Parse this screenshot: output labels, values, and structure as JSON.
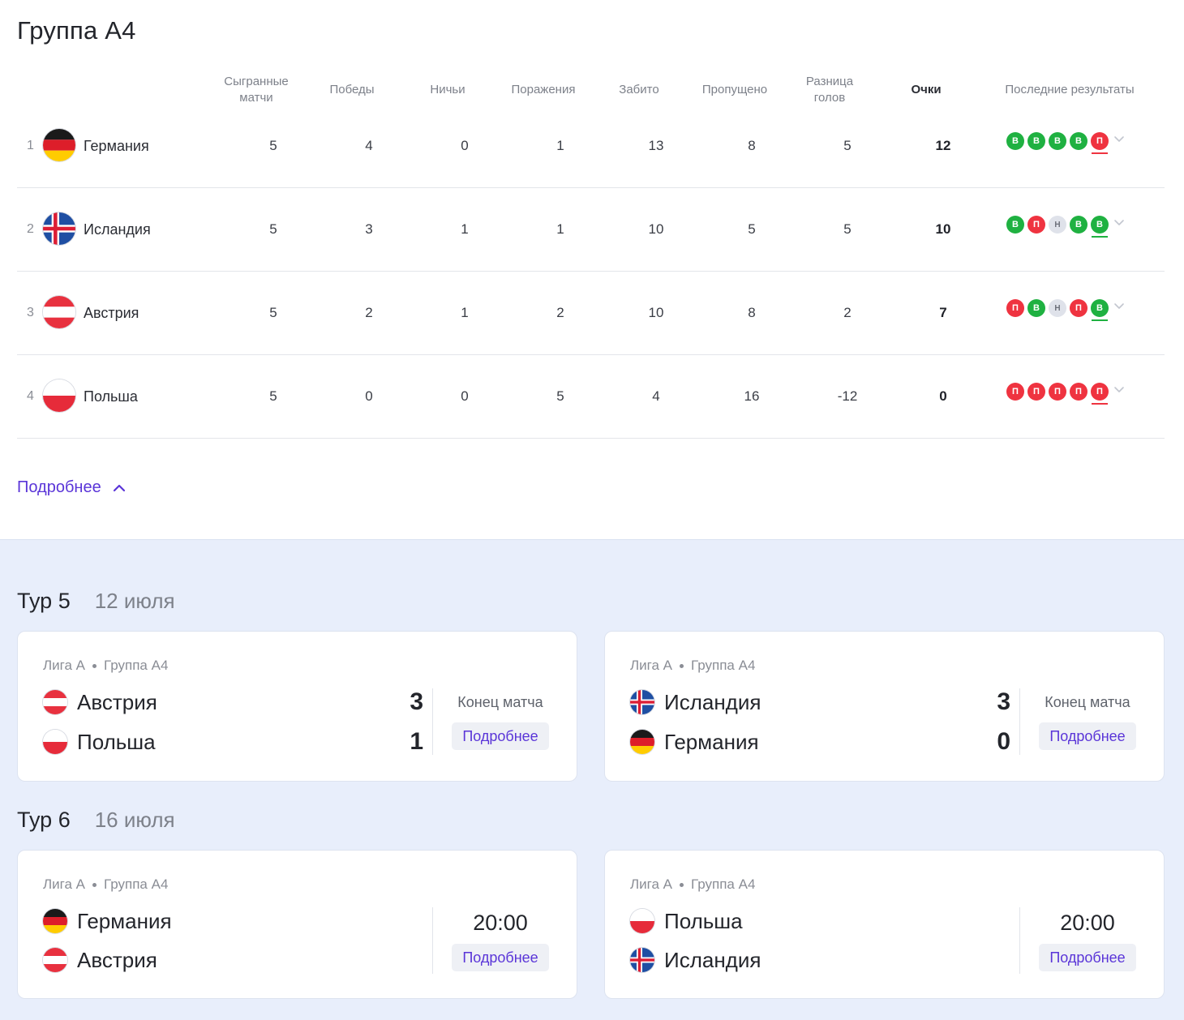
{
  "group": {
    "title": "Группа А4"
  },
  "table": {
    "headers": {
      "played": "Сыгранные матчи",
      "wins": "Победы",
      "draws": "Ничьи",
      "losses": "Поражения",
      "scored": "Забито",
      "conceded": "Пропущено",
      "goal_diff": "Разница голов",
      "points": "Очки",
      "recent": "Последние результаты"
    },
    "rows": [
      {
        "rank": "1",
        "team": "Германия",
        "flag": "germany",
        "played": "5",
        "wins": "4",
        "draws": "0",
        "losses": "1",
        "scored": "13",
        "conceded": "8",
        "goal_diff": "5",
        "points": "12",
        "recent": [
          {
            "t": "В",
            "k": "w"
          },
          {
            "t": "В",
            "k": "w"
          },
          {
            "t": "В",
            "k": "w"
          },
          {
            "t": "В",
            "k": "w"
          },
          {
            "t": "П",
            "k": "l"
          }
        ]
      },
      {
        "rank": "2",
        "team": "Исландия",
        "flag": "iceland",
        "played": "5",
        "wins": "3",
        "draws": "1",
        "losses": "1",
        "scored": "10",
        "conceded": "5",
        "goal_diff": "5",
        "points": "10",
        "recent": [
          {
            "t": "В",
            "k": "w"
          },
          {
            "t": "П",
            "k": "l"
          },
          {
            "t": "Н",
            "k": "d"
          },
          {
            "t": "В",
            "k": "w"
          },
          {
            "t": "В",
            "k": "w"
          }
        ]
      },
      {
        "rank": "3",
        "team": "Австрия",
        "flag": "austria",
        "played": "5",
        "wins": "2",
        "draws": "1",
        "losses": "2",
        "scored": "10",
        "conceded": "8",
        "goal_diff": "2",
        "points": "7",
        "recent": [
          {
            "t": "П",
            "k": "l"
          },
          {
            "t": "В",
            "k": "w"
          },
          {
            "t": "Н",
            "k": "d"
          },
          {
            "t": "П",
            "k": "l"
          },
          {
            "t": "В",
            "k": "w"
          }
        ]
      },
      {
        "rank": "4",
        "team": "Польша",
        "flag": "poland",
        "played": "5",
        "wins": "0",
        "draws": "0",
        "losses": "5",
        "scored": "4",
        "conceded": "16",
        "goal_diff": "-12",
        "points": "0",
        "recent": [
          {
            "t": "П",
            "k": "l"
          },
          {
            "t": "П",
            "k": "l"
          },
          {
            "t": "П",
            "k": "l"
          },
          {
            "t": "П",
            "k": "l"
          },
          {
            "t": "П",
            "k": "l"
          }
        ]
      }
    ],
    "more_label": "Подробнее"
  },
  "rounds": [
    {
      "title": "Тур 5",
      "date": "12 июля",
      "matches": [
        {
          "league": "Лига А",
          "group": "Группа А4",
          "home": "Австрия",
          "home_flag": "austria",
          "away": "Польша",
          "away_flag": "poland",
          "home_score": "3",
          "away_score": "1",
          "status": "Конец матча",
          "more": "Подробнее"
        },
        {
          "league": "Лига А",
          "group": "Группа А4",
          "home": "Исландия",
          "home_flag": "iceland",
          "away": "Германия",
          "away_flag": "germany",
          "home_score": "3",
          "away_score": "0",
          "status": "Конец матча",
          "more": "Подробнее"
        }
      ]
    },
    {
      "title": "Тур 6",
      "date": "16 июля",
      "matches": [
        {
          "league": "Лига А",
          "group": "Группа А4",
          "home": "Германия",
          "home_flag": "germany",
          "away": "Австрия",
          "away_flag": "austria",
          "time": "20:00",
          "more": "Подробнее"
        },
        {
          "league": "Лига А",
          "group": "Группа А4",
          "home": "Польша",
          "home_flag": "poland",
          "away": "Исландия",
          "away_flag": "iceland",
          "time": "20:00",
          "more": "Подробнее"
        }
      ]
    }
  ],
  "colors": {
    "accent": "#5a35d8",
    "win": "#1fb141",
    "loss": "#ef3340",
    "draw": "#dfe2ea",
    "background_lower": "#e8eefb"
  }
}
